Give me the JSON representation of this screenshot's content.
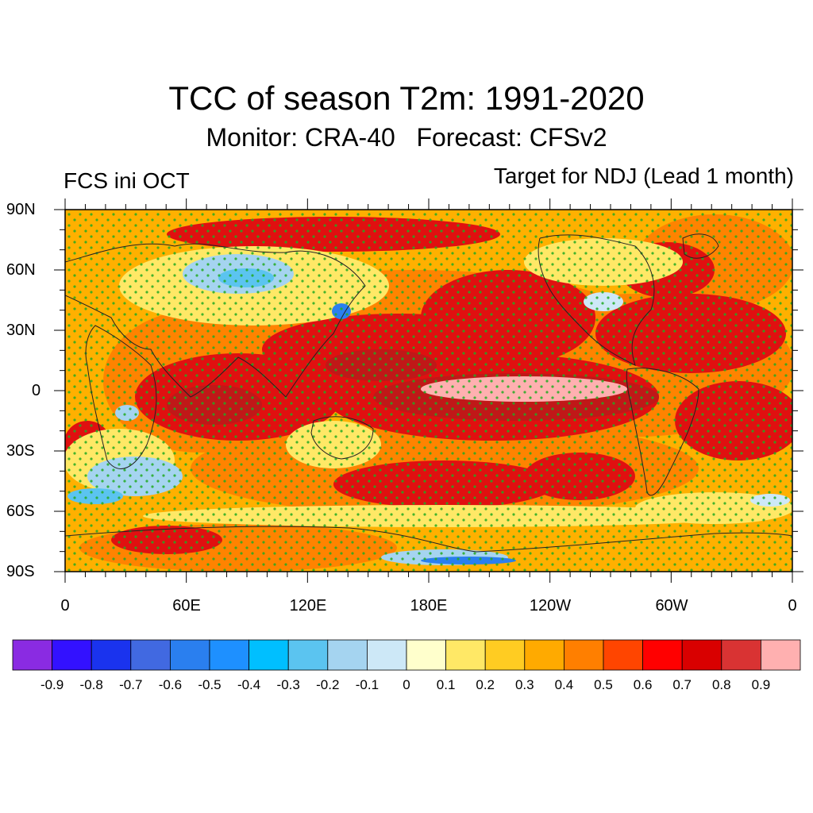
{
  "title": "TCC of season T2m: 1991-2020",
  "subtitle": "Monitor: CRA-40   Forecast: CFSv2",
  "left_label": "FCS ini OCT",
  "right_label": "Target for NDJ (Lead 1 month)",
  "map": {
    "lat_labels": [
      "90N",
      "60N",
      "30N",
      "0",
      "30S",
      "60S",
      "90S"
    ],
    "lat_values": [
      90,
      60,
      30,
      0,
      -30,
      -60,
      -90
    ],
    "lon_labels": [
      "0",
      "60E",
      "120E",
      "180E",
      "120W",
      "60W",
      "0"
    ],
    "lon_values": [
      0,
      60,
      120,
      180,
      240,
      300,
      360
    ],
    "stipple_color": "#22aa22",
    "background_color": "#ffb000"
  },
  "colorbar": {
    "colors": [
      "#8a2be2",
      "#3311ff",
      "#1a33ee",
      "#4169e1",
      "#2a7fef",
      "#1e90ff",
      "#00bfff",
      "#5bc4f0",
      "#a5d4f0",
      "#cde8f7",
      "#ffffcc",
      "#ffe866",
      "#ffcc22",
      "#ffaa00",
      "#ff7f00",
      "#ff4500",
      "#ff0000",
      "#d90000",
      "#d93333",
      "#ffb0b0"
    ],
    "labels": [
      "-0.9",
      "-0.8",
      "-0.7",
      "-0.6",
      "-0.5",
      "-0.4",
      "-0.3",
      "-0.2",
      "-0.1",
      "0",
      "0.1",
      "0.2",
      "0.3",
      "0.4",
      "0.5",
      "0.6",
      "0.7",
      "0.8",
      "0.9"
    ]
  }
}
